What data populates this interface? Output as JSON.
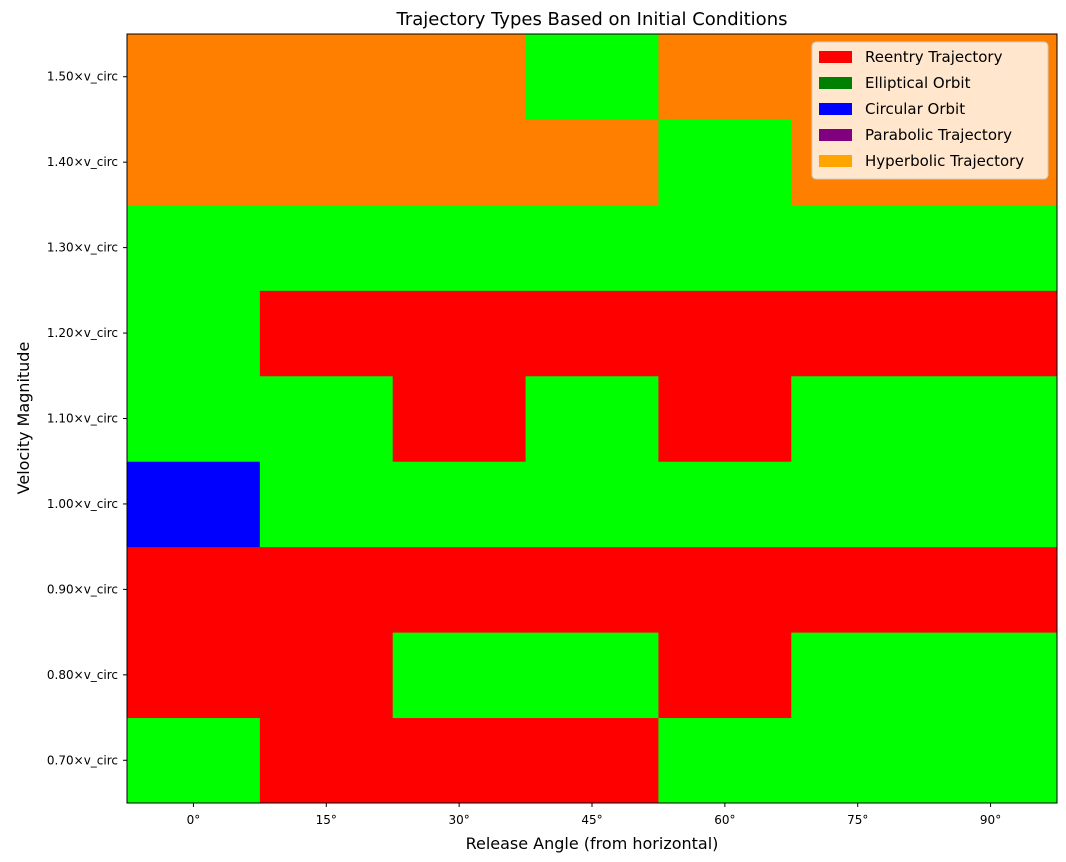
{
  "chart_data": {
    "type": "heatmap",
    "title": "Trajectory Types Based on Initial Conditions",
    "xlabel": "Release Angle (from horizontal)",
    "ylabel": "Velocity Magnitude",
    "x_categories": [
      "0°",
      "15°",
      "30°",
      "45°",
      "60°",
      "75°",
      "90°"
    ],
    "y_categories": [
      "0.70×v_circ",
      "0.80×v_circ",
      "0.90×v_circ",
      "1.00×v_circ",
      "1.10×v_circ",
      "1.20×v_circ",
      "1.30×v_circ",
      "1.40×v_circ",
      "1.50×v_circ"
    ],
    "classes": [
      {
        "name": "Reentry Trajectory",
        "legend_color": "#ff0000",
        "cell_color": "#ff0000"
      },
      {
        "name": "Elliptical Orbit",
        "legend_color": "#008000",
        "cell_color": "#00ff00"
      },
      {
        "name": "Circular Orbit",
        "legend_color": "#0000ff",
        "cell_color": "#0000ff"
      },
      {
        "name": "Parabolic Trajectory",
        "legend_color": "#800080",
        "cell_color": "#800080"
      },
      {
        "name": "Hyperbolic Trajectory",
        "legend_color": "#ffa500",
        "cell_color": "#ff8000"
      }
    ],
    "grid_note": "rows ordered bottom (0.70) to top (1.50); values are class indices",
    "values": [
      [
        1,
        0,
        0,
        0,
        1,
        1,
        1
      ],
      [
        0,
        0,
        1,
        1,
        0,
        1,
        1
      ],
      [
        0,
        0,
        0,
        0,
        0,
        0,
        0
      ],
      [
        2,
        1,
        1,
        1,
        1,
        1,
        1
      ],
      [
        1,
        1,
        0,
        1,
        0,
        1,
        1
      ],
      [
        1,
        0,
        0,
        0,
        0,
        0,
        0
      ],
      [
        1,
        1,
        1,
        1,
        1,
        1,
        1
      ],
      [
        4,
        4,
        4,
        4,
        1,
        4,
        4
      ],
      [
        4,
        4,
        4,
        1,
        4,
        4,
        4
      ]
    ],
    "legend_position": "top-right",
    "grid": false
  }
}
